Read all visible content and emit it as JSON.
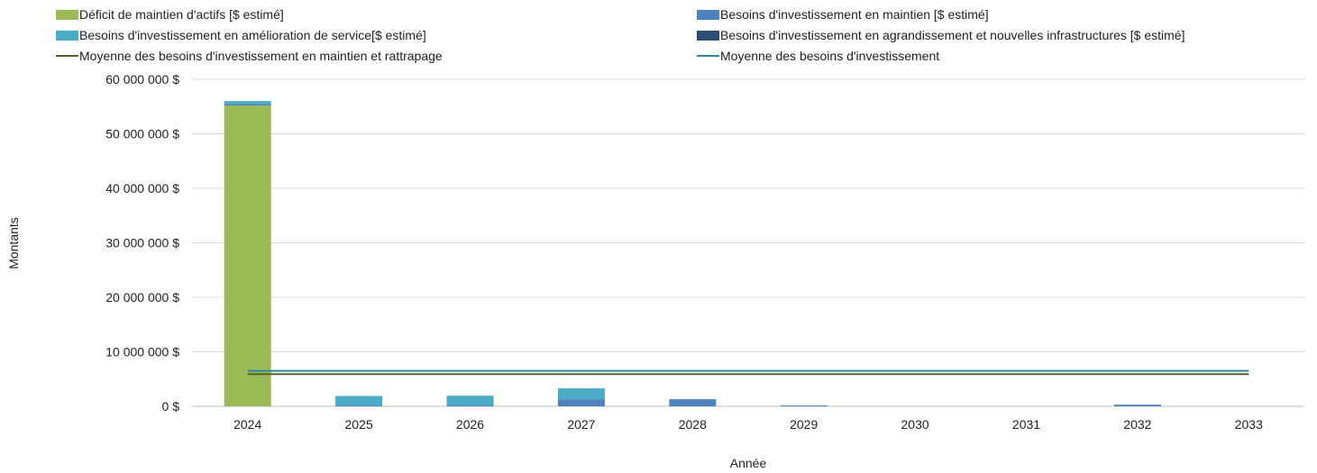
{
  "colors": {
    "deficit": "#9bbb59",
    "maintien": "#4f81bd",
    "amelioration": "#4bacc6",
    "agrandissement": "#2c4d75",
    "avg_maintien": "#4f6228",
    "avg_total": "#31859c",
    "grid": "#d9d9d9"
  },
  "legend": [
    {
      "key": "deficit",
      "label": "Déficit de maintien d'actifs [$ estimé]",
      "kind": "bar"
    },
    {
      "key": "maintien",
      "label": "Besoins d'investissement en maintien [$ estimé]",
      "kind": "bar"
    },
    {
      "key": "amelioration",
      "label": "Besoins d'investissement en amélioration de service[$ estimé]",
      "kind": "bar"
    },
    {
      "key": "agrandissement",
      "label": "Besoins d'investissement en agrandissement et nouvelles infrastructures [$ estimé]",
      "kind": "bar"
    },
    {
      "key": "avg_maintien",
      "label": "Moyenne des besoins d'investissement en maintien et rattrapage",
      "kind": "line"
    },
    {
      "key": "avg_total",
      "label": "Moyenne des besoins d'investissement",
      "kind": "line"
    }
  ],
  "chart_data": {
    "type": "bar",
    "stacked": true,
    "categories": [
      "2024",
      "2025",
      "2026",
      "2027",
      "2028",
      "2029",
      "2030",
      "2031",
      "2032",
      "2033"
    ],
    "series": [
      {
        "name": "Déficit de maintien d'actifs [$ estimé]",
        "color_key": "deficit",
        "values": [
          55200000,
          0,
          0,
          0,
          0,
          0,
          0,
          0,
          0,
          0
        ]
      },
      {
        "name": "Besoins d'investissement en maintien [$ estimé]",
        "color_key": "maintien",
        "values": [
          300000,
          150000,
          150000,
          1300000,
          1300000,
          150000,
          0,
          0,
          300000,
          0
        ]
      },
      {
        "name": "Besoins d'investissement en amélioration de service[$ estimé]",
        "color_key": "amelioration",
        "values": [
          500000,
          1750000,
          1800000,
          2000000,
          0,
          0,
          0,
          0,
          0,
          0
        ]
      },
      {
        "name": "Besoins d'investissement en agrandissement et nouvelles infrastructures [$ estimé]",
        "color_key": "agrandissement",
        "values": [
          0,
          0,
          0,
          0,
          0,
          0,
          0,
          0,
          0,
          0
        ]
      }
    ],
    "lines": [
      {
        "name": "Moyenne des besoins d'investissement en maintien et rattrapage",
        "color_key": "avg_maintien",
        "value": 5900000
      },
      {
        "name": "Moyenne des besoins d'investissement",
        "color_key": "avg_total",
        "value": 6500000
      }
    ],
    "ylim": [
      0,
      60000000
    ],
    "yticks": [
      0,
      10000000,
      20000000,
      30000000,
      40000000,
      50000000,
      60000000
    ],
    "ytick_labels": [
      "0 $",
      "10 000 000 $",
      "20 000 000 $",
      "30 000 000 $",
      "40 000 000 $",
      "50 000 000 $",
      "60 000 000 $"
    ],
    "xlabel": "Année",
    "ylabel": "Montants",
    "grid": true,
    "legend_position": "top"
  }
}
